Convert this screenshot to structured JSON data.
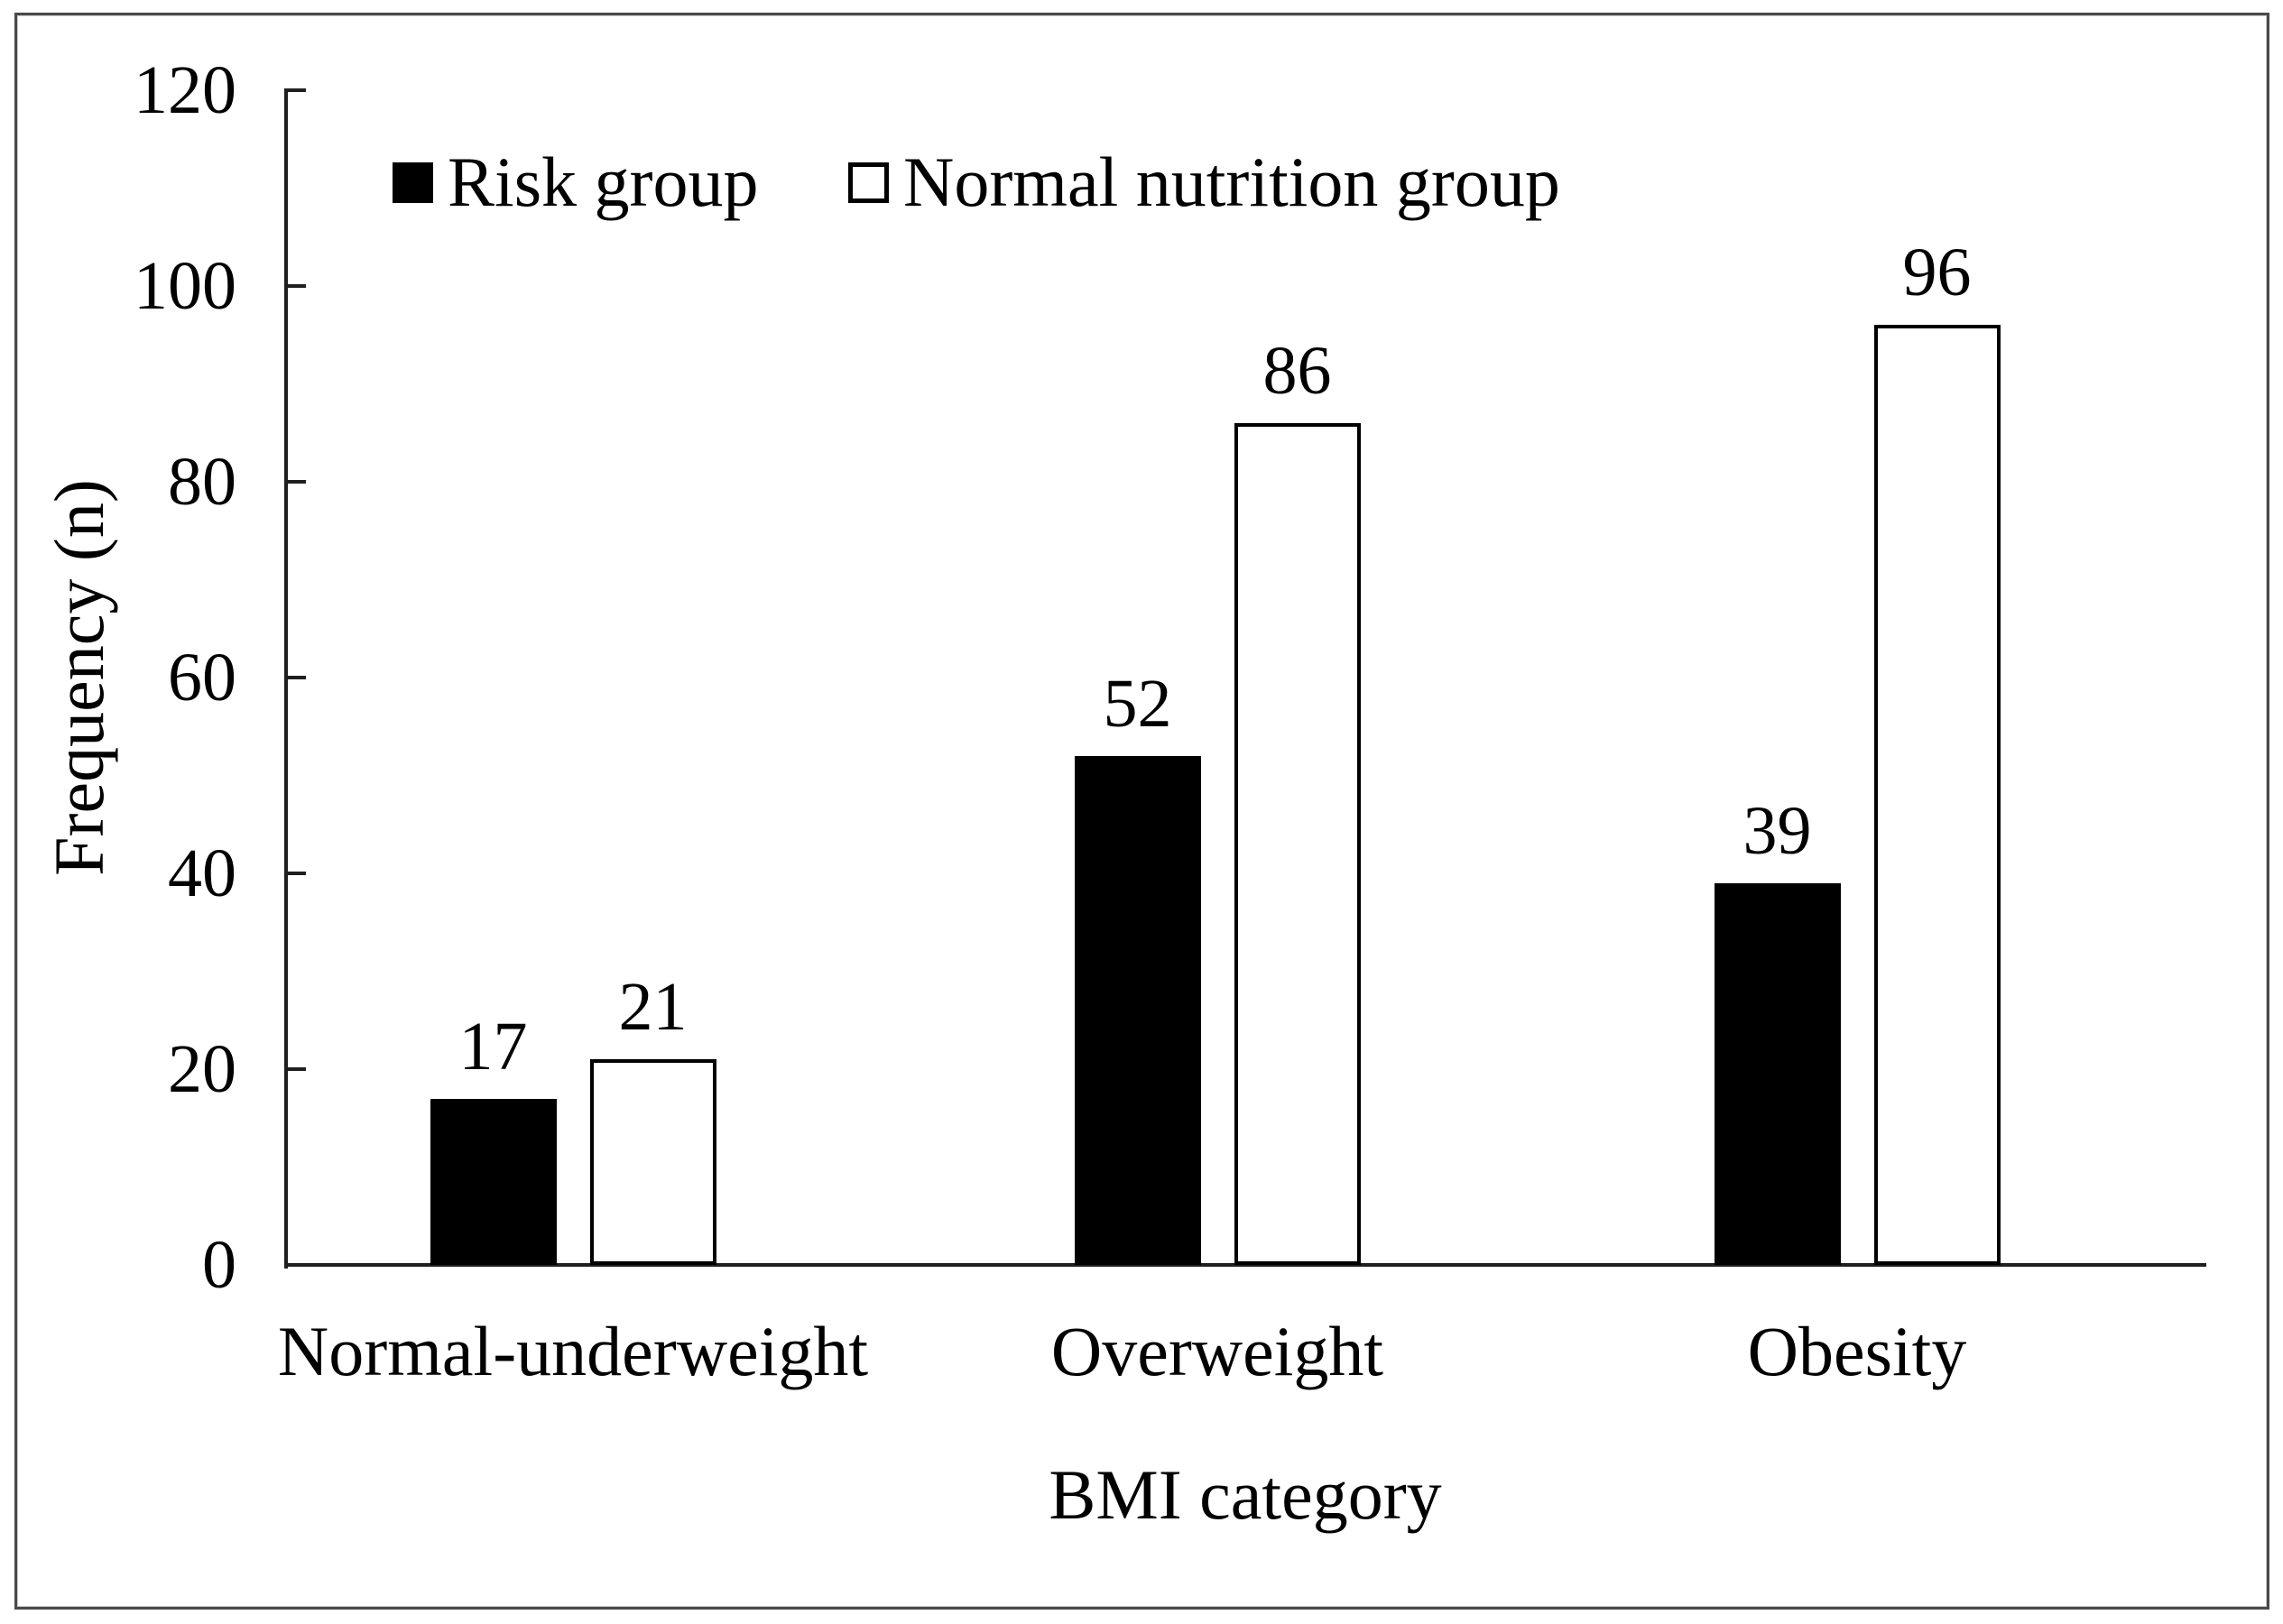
{
  "figure": {
    "background_color": "#ffffff",
    "frame_color": "#4a4a4a",
    "axis_color": "#1f1f1f",
    "text_color": "#000000"
  },
  "chart_data": {
    "type": "bar",
    "title": "",
    "xlabel": "BMI category",
    "ylabel": "Frequency (n)",
    "categories": [
      "Normal-underweight",
      "Overweight",
      "Obesity"
    ],
    "series": [
      {
        "name": "Risk group",
        "values": [
          17,
          52,
          39
        ],
        "fill": "#000000",
        "stroke": "#000000"
      },
      {
        "name": "Normal nutrition group",
        "values": [
          21,
          86,
          96
        ],
        "fill": "#ffffff",
        "stroke": "#000000"
      }
    ],
    "value_labels": [
      [
        "17",
        "52",
        "39"
      ],
      [
        "21",
        "86",
        "96"
      ]
    ],
    "ylim": [
      0,
      120
    ],
    "yticks": [
      0,
      20,
      40,
      60,
      80,
      100,
      120
    ],
    "grid": false,
    "legend_position": "top-left-inside",
    "ticks_direction": "inside"
  }
}
